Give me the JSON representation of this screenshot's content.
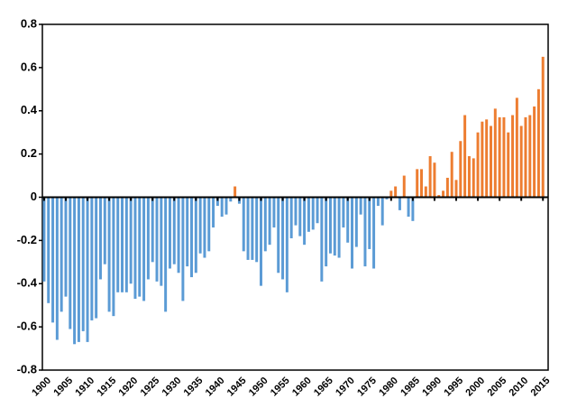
{
  "chart_data": {
    "type": "bar",
    "x": [
      1900,
      1901,
      1902,
      1903,
      1904,
      1905,
      1906,
      1907,
      1908,
      1909,
      1910,
      1911,
      1912,
      1913,
      1914,
      1915,
      1916,
      1917,
      1918,
      1919,
      1920,
      1921,
      1922,
      1923,
      1924,
      1925,
      1926,
      1927,
      1928,
      1929,
      1930,
      1931,
      1932,
      1933,
      1934,
      1935,
      1936,
      1937,
      1938,
      1939,
      1940,
      1941,
      1942,
      1943,
      1944,
      1945,
      1946,
      1947,
      1948,
      1949,
      1950,
      1951,
      1952,
      1953,
      1954,
      1955,
      1956,
      1957,
      1958,
      1959,
      1960,
      1961,
      1962,
      1963,
      1964,
      1965,
      1966,
      1967,
      1968,
      1969,
      1970,
      1971,
      1972,
      1973,
      1974,
      1975,
      1976,
      1977,
      1978,
      1979,
      1980,
      1981,
      1982,
      1983,
      1984,
      1985,
      1986,
      1987,
      1988,
      1989,
      1990,
      1991,
      1992,
      1993,
      1994,
      1995,
      1996,
      1997,
      1998,
      1999,
      2000,
      2001,
      2002,
      2003,
      2004,
      2005,
      2006,
      2007,
      2008,
      2009,
      2010,
      2011,
      2012,
      2013,
      2014,
      2015
    ],
    "values": [
      -0.39,
      -0.49,
      -0.58,
      -0.66,
      -0.53,
      -0.46,
      -0.61,
      -0.68,
      -0.67,
      -0.62,
      -0.67,
      -0.57,
      -0.56,
      -0.38,
      -0.31,
      -0.53,
      -0.55,
      -0.44,
      -0.44,
      -0.44,
      -0.4,
      -0.47,
      -0.46,
      -0.48,
      -0.38,
      -0.3,
      -0.39,
      -0.41,
      -0.53,
      -0.33,
      -0.31,
      -0.35,
      -0.48,
      -0.32,
      -0.37,
      -0.35,
      -0.26,
      -0.28,
      -0.25,
      -0.14,
      -0.04,
      -0.09,
      -0.08,
      -0.02,
      0.05,
      -0.03,
      -0.25,
      -0.29,
      -0.29,
      -0.3,
      -0.41,
      -0.25,
      -0.22,
      -0.14,
      -0.35,
      -0.38,
      -0.44,
      -0.19,
      -0.13,
      -0.18,
      -0.22,
      -0.16,
      -0.15,
      -0.12,
      -0.39,
      -0.32,
      -0.26,
      -0.27,
      -0.28,
      -0.14,
      -0.21,
      -0.33,
      -0.23,
      -0.08,
      -0.32,
      -0.24,
      -0.33,
      -0.04,
      -0.13,
      -0.01,
      0.03,
      0.05,
      -0.06,
      0.1,
      -0.09,
      -0.11,
      0.13,
      0.13,
      0.05,
      0.19,
      0.16,
      0.01,
      0.03,
      0.09,
      0.21,
      0.08,
      0.26,
      0.38,
      0.19,
      0.18,
      0.3,
      0.35,
      0.36,
      0.33,
      0.41,
      0.37,
      0.37,
      0.3,
      0.38,
      0.46,
      0.33,
      0.37,
      0.38,
      0.42,
      0.5,
      0.65
    ],
    "colors": {
      "negative": "#5b9bd5",
      "positive": "#ed7d31"
    },
    "xlim": [
      1899.6,
      2016.2
    ],
    "xticks": [
      1900,
      1905,
      1910,
      1915,
      1920,
      1925,
      1930,
      1935,
      1940,
      1945,
      1950,
      1955,
      1960,
      1965,
      1970,
      1975,
      1980,
      1985,
      1990,
      1995,
      2000,
      2005,
      2010,
      2015
    ],
    "ylim": [
      -0.8,
      0.8
    ],
    "yticks": [
      -0.8,
      -0.6,
      -0.4,
      -0.2,
      0,
      0.2,
      0.4,
      0.6,
      0.8
    ]
  }
}
